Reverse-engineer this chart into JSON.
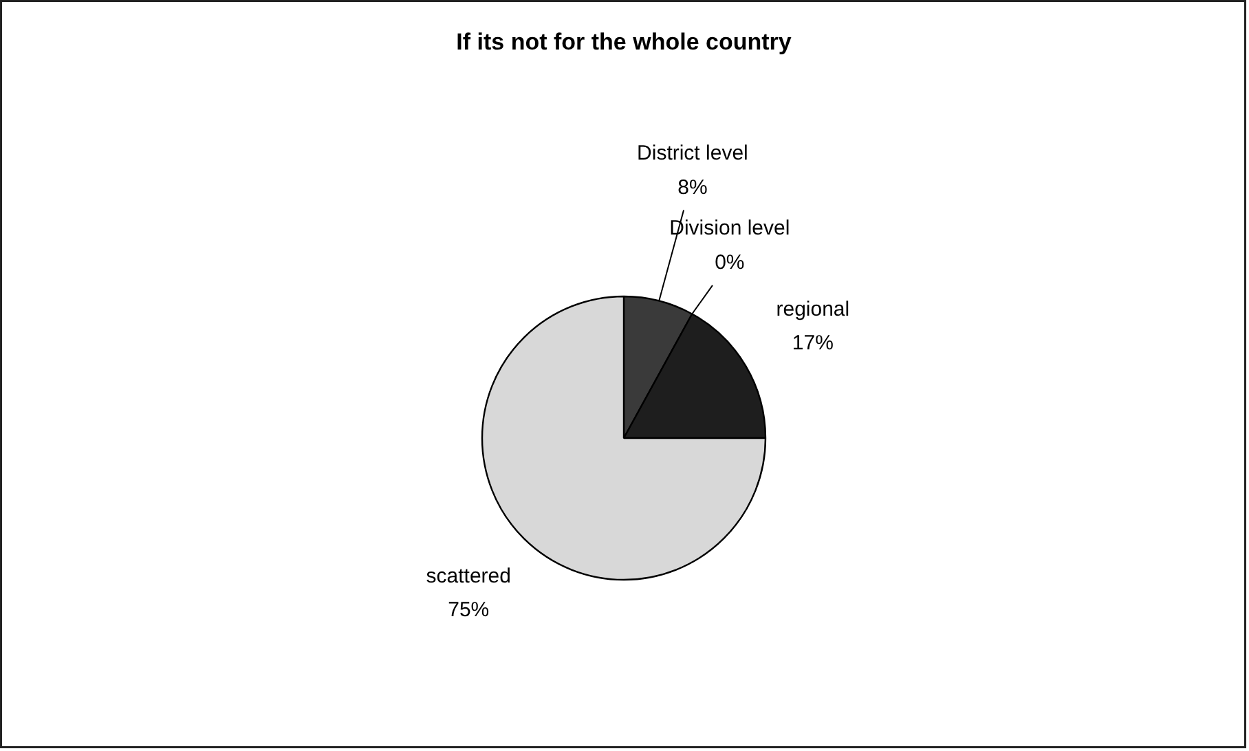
{
  "chart_data": {
    "type": "pie",
    "title": "If its not for the whole country",
    "categories": [
      "District level",
      "Division level",
      "regional",
      "scattered"
    ],
    "values": [
      8,
      0,
      17,
      75
    ],
    "value_labels": [
      "8%",
      "0%",
      "17%",
      "75%"
    ],
    "colors": [
      "#3a3a3a",
      "#8a8a8a",
      "#1e1e1e",
      "#d8d8d8"
    ]
  }
}
